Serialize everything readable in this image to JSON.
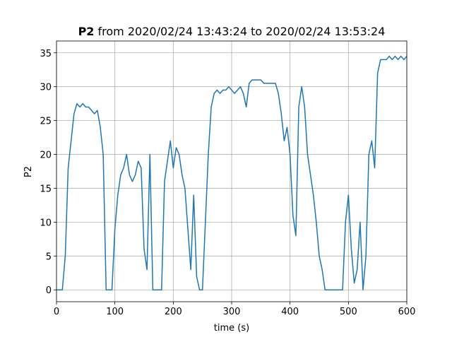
{
  "chart_data": {
    "type": "line",
    "title_bold": "P2",
    "title": "from 2020/02/24 13:43:24 to 2020/02/24 13:53:24",
    "xlabel": "time (s)",
    "ylabel": "P2",
    "x": [
      0,
      5,
      10,
      15,
      20,
      25,
      30,
      35,
      40,
      45,
      50,
      55,
      60,
      65,
      70,
      75,
      80,
      85,
      90,
      95,
      100,
      105,
      110,
      115,
      120,
      125,
      130,
      135,
      140,
      145,
      150,
      155,
      160,
      165,
      170,
      175,
      180,
      185,
      190,
      195,
      200,
      205,
      210,
      215,
      220,
      225,
      230,
      235,
      240,
      245,
      250,
      255,
      260,
      265,
      270,
      275,
      280,
      285,
      290,
      295,
      300,
      305,
      310,
      315,
      320,
      325,
      330,
      335,
      340,
      345,
      350,
      355,
      360,
      365,
      370,
      375,
      380,
      385,
      390,
      395,
      400,
      405,
      410,
      415,
      420,
      425,
      430,
      435,
      440,
      445,
      450,
      455,
      460,
      465,
      470,
      475,
      480,
      485,
      490,
      495,
      500,
      505,
      510,
      515,
      520,
      525,
      530,
      535,
      540,
      545,
      550,
      555,
      560,
      565,
      570,
      575,
      580,
      585,
      590,
      595,
      600
    ],
    "values": [
      0,
      0,
      0,
      5,
      18,
      22,
      26,
      27.5,
      27,
      27.5,
      27,
      27,
      26.5,
      26,
      26.5,
      24,
      20,
      0,
      0,
      0,
      9,
      14,
      17,
      18,
      20,
      17,
      16,
      17,
      19,
      18,
      6,
      3,
      20,
      0,
      0,
      0,
      0,
      16,
      19,
      22,
      18,
      21,
      20,
      17,
      15,
      9,
      3,
      14,
      2,
      0,
      0,
      10,
      20,
      27,
      29,
      29.5,
      29,
      29.5,
      29.5,
      30,
      29.5,
      29,
      29.5,
      30,
      29,
      27,
      30.5,
      31,
      31,
      31,
      31,
      30.5,
      30.5,
      30.5,
      30.5,
      30.5,
      29,
      26,
      22,
      24,
      20,
      11,
      8,
      27,
      30,
      27,
      20,
      17,
      14,
      10,
      5,
      3,
      0,
      0,
      0,
      0,
      0,
      0,
      0,
      10,
      14,
      6,
      1,
      3,
      10,
      0,
      5,
      20,
      22,
      18,
      32,
      34,
      34,
      34,
      34.5,
      34,
      34.5,
      34,
      34.5,
      34,
      34.5
    ],
    "color": "#1f77b4",
    "xlim": [
      0,
      600
    ],
    "xticks": [
      0,
      100,
      200,
      300,
      400,
      500,
      600
    ],
    "ylim": [
      -1.75,
      36.75
    ],
    "yticks": [
      0,
      5,
      10,
      15,
      20,
      25,
      30,
      35
    ],
    "grid": true
  }
}
